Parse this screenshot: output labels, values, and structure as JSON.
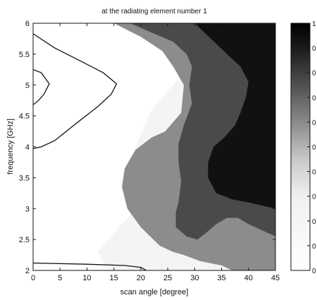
{
  "chart_data": {
    "type": "heatmap",
    "title": "at the radiating element number 1",
    "xlabel": "scan angle [degree]",
    "ylabel": "frequency [GHz]",
    "xlim": [
      0,
      45
    ],
    "ylim": [
      2,
      6
    ],
    "x_ticks": [
      {
        "value": 0,
        "label": "0"
      },
      {
        "value": 5,
        "label": "5"
      },
      {
        "value": 10,
        "label": "10"
      },
      {
        "value": 15,
        "label": "15"
      },
      {
        "value": 20,
        "label": "20"
      },
      {
        "value": 25,
        "label": "25"
      },
      {
        "value": 30,
        "label": "30"
      },
      {
        "value": 35,
        "label": "35"
      },
      {
        "value": 40,
        "label": "40"
      },
      {
        "value": 45,
        "label": "45"
      }
    ],
    "y_ticks": [
      {
        "value": 2,
        "label": "2"
      },
      {
        "value": 2.5,
        "label": "2.5"
      },
      {
        "value": 3,
        "label": "3"
      },
      {
        "value": 3.5,
        "label": "3.5"
      },
      {
        "value": 4,
        "label": "4"
      },
      {
        "value": 4.5,
        "label": "4.5"
      },
      {
        "value": 5,
        "label": "5"
      },
      {
        "value": 5.5,
        "label": "5.5"
      },
      {
        "value": 6,
        "label": "6"
      }
    ],
    "colorbar": {
      "range": [
        0,
        1
      ],
      "tick_labels": [
        "1",
        "0",
        "0",
        "0",
        "0",
        "0",
        "0",
        "0",
        "0",
        "0",
        "0"
      ]
    },
    "grid": false,
    "contours": [
      {
        "level": "low",
        "color": "#111111",
        "points": [
          [
            0,
            5.83
          ],
          [
            4,
            5.6
          ],
          [
            9,
            5.38
          ],
          [
            13,
            5.2
          ],
          [
            15.5,
            5.02
          ],
          [
            14.5,
            4.85
          ],
          [
            12,
            4.65
          ],
          [
            8,
            4.38
          ],
          [
            4,
            4.1
          ],
          [
            1.5,
            4.0
          ],
          [
            0,
            3.97
          ]
        ]
      },
      {
        "level": "low",
        "color": "#111111",
        "points": [
          [
            0,
            5.25
          ],
          [
            1.5,
            5.2
          ],
          [
            3,
            5.02
          ],
          [
            2,
            4.85
          ],
          [
            1,
            4.75
          ],
          [
            0,
            4.68
          ]
        ]
      },
      {
        "level": "low",
        "color": "#111111",
        "points": [
          [
            0,
            2.12
          ],
          [
            10,
            2.1
          ],
          [
            17,
            2.08
          ],
          [
            20,
            2.05
          ],
          [
            21,
            2.0
          ]
        ]
      }
    ],
    "regions": [
      {
        "level": 0.2,
        "color": "#f4f4f4",
        "points": [
          [
            12,
            2.3
          ],
          [
            18,
            2.9
          ],
          [
            21,
            3.5
          ],
          [
            19,
            4.0
          ],
          [
            22,
            4.6
          ],
          [
            28,
            5.2
          ],
          [
            25,
            6
          ],
          [
            45,
            6
          ],
          [
            45,
            2
          ],
          [
            14,
            2
          ]
        ]
      },
      {
        "level": 0.55,
        "color": "#8c8c8c",
        "points": [
          [
            15,
            6
          ],
          [
            20,
            5.78
          ],
          [
            24,
            5.55
          ],
          [
            26,
            5.3
          ],
          [
            28,
            5.0
          ],
          [
            27.5,
            4.55
          ],
          [
            24.5,
            4.25
          ],
          [
            22,
            4.15
          ],
          [
            19,
            3.95
          ],
          [
            17,
            3.65
          ],
          [
            16.5,
            3.35
          ],
          [
            17.5,
            3.0
          ],
          [
            20,
            2.7
          ],
          [
            23.5,
            2.4
          ],
          [
            26,
            2.3
          ],
          [
            28,
            2.25
          ],
          [
            31,
            2.15
          ],
          [
            35,
            2.08
          ],
          [
            37,
            2.0
          ],
          [
            45,
            2
          ],
          [
            45,
            6
          ]
        ]
      },
      {
        "level": 0.75,
        "color": "#4a4a4a",
        "points": [
          [
            18,
            6
          ],
          [
            22,
            5.85
          ],
          [
            26,
            5.7
          ],
          [
            28.5,
            5.5
          ],
          [
            29.5,
            5.3
          ],
          [
            29,
            5.0
          ],
          [
            29.5,
            4.7
          ],
          [
            28,
            4.35
          ],
          [
            27,
            4.05
          ],
          [
            27,
            3.75
          ],
          [
            27.5,
            3.45
          ],
          [
            27,
            3.1
          ],
          [
            26.5,
            2.95
          ],
          [
            26.5,
            2.7
          ],
          [
            28.5,
            2.55
          ],
          [
            30.5,
            2.5
          ],
          [
            32,
            2.6
          ],
          [
            34,
            2.75
          ],
          [
            36,
            2.85
          ],
          [
            38,
            2.85
          ],
          [
            40,
            2.75
          ],
          [
            42.5,
            2.65
          ],
          [
            45,
            2.55
          ],
          [
            45,
            6
          ]
        ]
      },
      {
        "level": 0.95,
        "color": "#111111",
        "points": [
          [
            30,
            6
          ],
          [
            33,
            5.75
          ],
          [
            36,
            5.5
          ],
          [
            38.5,
            5.3
          ],
          [
            40,
            5.05
          ],
          [
            39.5,
            4.8
          ],
          [
            38.5,
            4.55
          ],
          [
            37.5,
            4.35
          ],
          [
            35.5,
            4.15
          ],
          [
            33.5,
            4.0
          ],
          [
            32.5,
            3.75
          ],
          [
            32.5,
            3.5
          ],
          [
            34,
            3.25
          ],
          [
            37,
            3.15
          ],
          [
            40,
            3.1
          ],
          [
            42.5,
            3.05
          ],
          [
            45,
            3.0
          ],
          [
            45,
            6
          ]
        ]
      }
    ]
  }
}
